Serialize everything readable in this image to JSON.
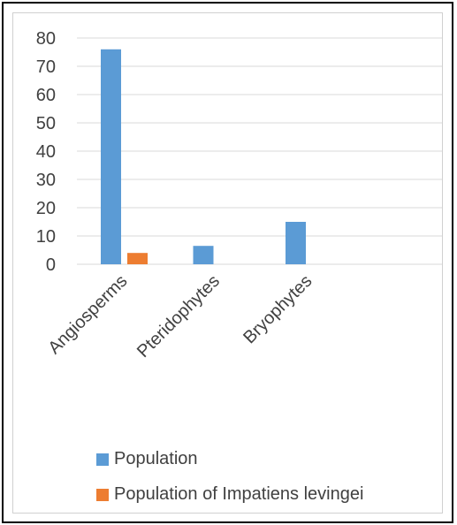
{
  "chart_data": {
    "type": "bar",
    "categories": [
      "Angiosperms",
      "Pteridophytes",
      "Bryophytes"
    ],
    "series": [
      {
        "name": "Population",
        "color": "#5b9bd5",
        "values": [
          76,
          6.5,
          15
        ]
      },
      {
        "name": "Population of Impatiens levingei",
        "color": "#ed7d31",
        "values": [
          4,
          0,
          0
        ]
      }
    ],
    "ylim": [
      0,
      80
    ],
    "yticks": [
      0,
      10,
      20,
      30,
      40,
      50,
      60,
      70,
      80
    ],
    "grid": true,
    "legend_position": "bottom-left",
    "title": "",
    "xlabel": "",
    "ylabel": ""
  }
}
